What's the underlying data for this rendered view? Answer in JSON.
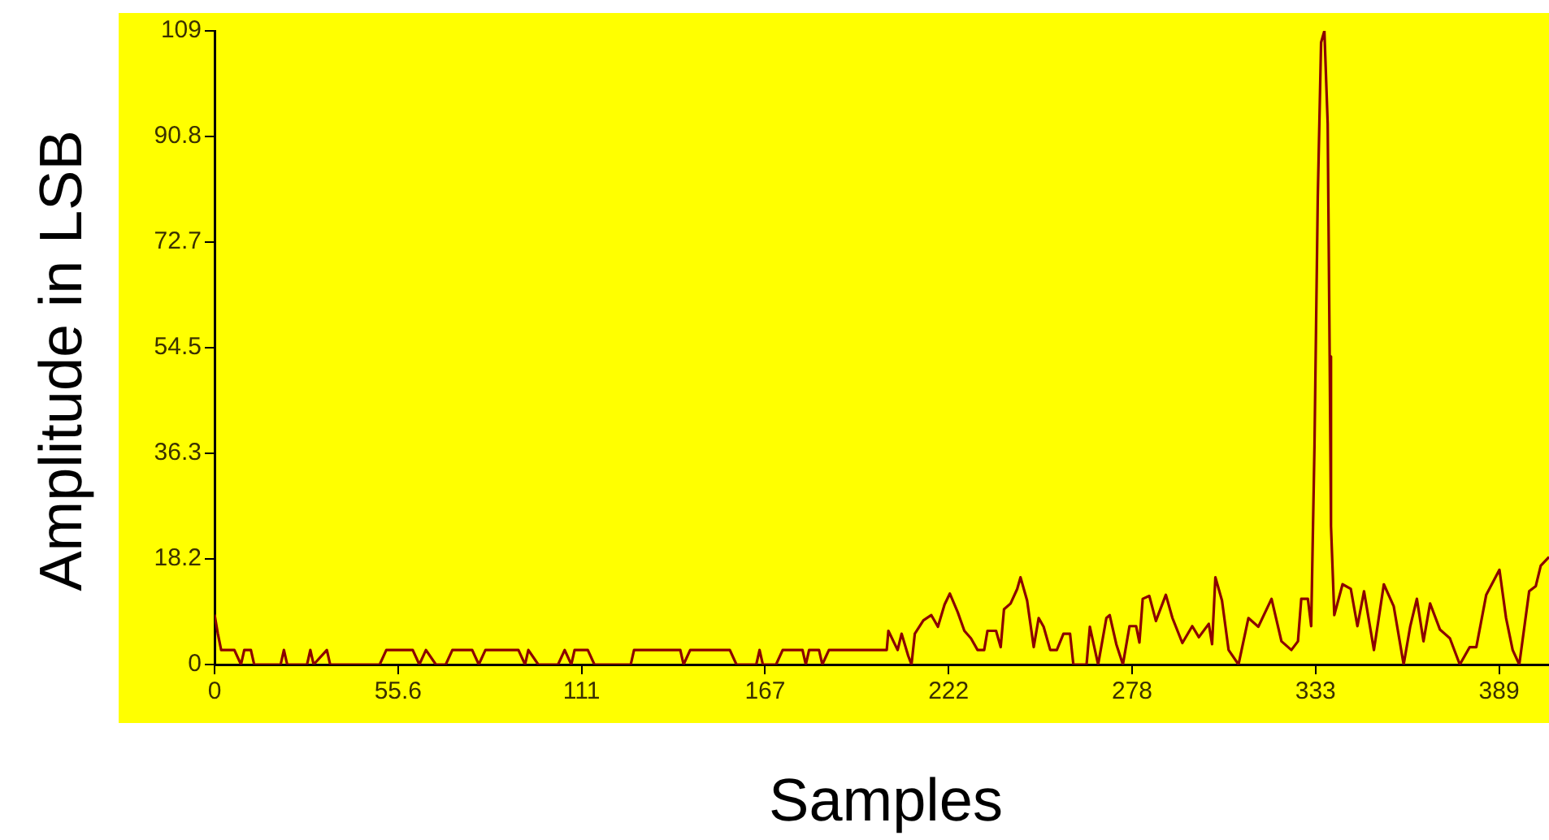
{
  "chart_data": {
    "type": "line",
    "xlabel": "Samples",
    "ylabel": "Amplitude in LSB",
    "xlim": [
      0,
      404
    ],
    "ylim": [
      0,
      109
    ],
    "xticks": [
      0,
      {
        "value": 55.56,
        "label": "55.6"
      },
      {
        "value": 111.11,
        "label": "111"
      },
      {
        "value": 166.67,
        "label": "167"
      },
      {
        "value": 222.22,
        "label": "222"
      },
      {
        "value": 277.78,
        "label": "278"
      },
      {
        "value": 333.33,
        "label": "333"
      },
      {
        "value": 388.89,
        "label": "389"
      }
    ],
    "yticks": [
      0,
      {
        "value": 18.17,
        "label": "18.2"
      },
      {
        "value": 36.33,
        "label": "36.3"
      },
      54.5,
      {
        "value": 72.67,
        "label": "72.7"
      },
      {
        "value": 90.83,
        "label": "90.8"
      },
      109
    ],
    "grid": false,
    "legend": false,
    "marker": "none",
    "line_style": "solid",
    "series": [
      {
        "color": "#8b0000",
        "x": [
          0,
          1,
          2,
          6,
          8,
          9,
          11,
          12,
          20,
          21,
          22,
          28,
          29,
          30,
          34,
          35,
          50,
          52,
          60,
          62,
          64,
          67,
          70,
          72,
          78,
          80,
          82,
          92,
          94,
          95,
          98,
          104,
          106,
          108,
          109,
          113,
          115,
          126,
          127,
          141,
          142,
          144,
          156,
          158,
          164,
          165,
          166,
          170,
          172,
          178,
          179,
          180,
          183,
          184,
          186,
          203.5,
          204,
          206.8,
          208,
          210,
          211,
          212,
          214.6,
          217,
          219,
          221,
          222.6,
          225,
          227,
          229,
          231,
          233,
          234,
          236.6,
          238,
          239,
          241,
          243,
          244,
          246,
          248,
          249.5,
          251,
          253,
          255,
          257,
          259,
          260,
          264,
          265,
          267.5,
          270,
          271,
          273,
          275,
          277,
          279,
          280,
          281,
          283,
          285,
          288,
          290,
          293,
          296,
          298,
          301,
          302,
          303,
          305,
          307,
          310,
          313,
          316,
          320,
          323,
          326,
          328,
          329,
          331,
          332,
          333,
          334,
          335,
          336,
          337,
          337.6,
          338,
          339,
          341.5,
          344,
          346,
          348,
          351,
          354,
          357,
          360,
          362,
          364,
          366,
          368,
          371,
          374,
          377,
          380,
          382,
          385,
          389,
          391,
          393,
          395,
          398,
          400,
          401.5,
          404
        ],
        "values": [
          8.6,
          5.3,
          2.5,
          2.5,
          0,
          2.5,
          2.5,
          0,
          0,
          2.5,
          0,
          0,
          2.5,
          0,
          2.5,
          0,
          0,
          2.5,
          2.5,
          0,
          2.5,
          0,
          0,
          2.5,
          2.5,
          0,
          2.5,
          2.5,
          0,
          2.5,
          0,
          0,
          2.5,
          0,
          2.5,
          2.5,
          0,
          0,
          2.5,
          2.5,
          0,
          2.5,
          2.5,
          0,
          0,
          2.5,
          0,
          0,
          2.5,
          2.5,
          0,
          2.5,
          2.5,
          0,
          2.5,
          2.5,
          5.8,
          2.5,
          5.3,
          1.5,
          0,
          5.3,
          7.6,
          8.5,
          6.5,
          10.3,
          12.2,
          9,
          5.8,
          4.5,
          2.5,
          2.5,
          5.8,
          5.8,
          3,
          9.5,
          10.5,
          13,
          15,
          11,
          3,
          8,
          6.5,
          2.5,
          2.5,
          5.3,
          5.3,
          0,
          0,
          6.5,
          0,
          8,
          8.5,
          3.5,
          0,
          6.6,
          6.6,
          3.8,
          11.3,
          11.8,
          7.5,
          12,
          8,
          3.7,
          6.6,
          4.7,
          7,
          3.5,
          15,
          11,
          2.5,
          0,
          8,
          6.5,
          11.3,
          4,
          2.5,
          4,
          11.3,
          11.3,
          6.6,
          37.6,
          80.5,
          107,
          109,
          93,
          53,
          23.8,
          8.5,
          13.8,
          13,
          6.6,
          12.6,
          2.5,
          13.8,
          10,
          0,
          6.6,
          11.3,
          4,
          10.5,
          6,
          4.5,
          0,
          3,
          3,
          12,
          16.3,
          8,
          2.5,
          0,
          12.6,
          13.5,
          17,
          18.5
        ]
      }
    ]
  }
}
